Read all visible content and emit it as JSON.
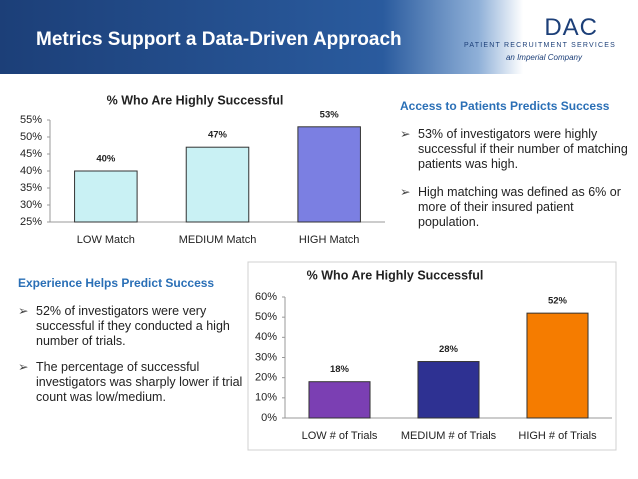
{
  "header": {
    "title": "Metrics Support a Data-Driven Approach",
    "logo": "DAC",
    "logo_subtitle": "PATIENT RECRUITMENT SERVICES",
    "logo_tagline": "an Imperial Company"
  },
  "right_section": {
    "heading": "Access to Patients Predicts Success",
    "bullets": [
      "53% of investigators were highly successful if their number of matching patients was high.",
      "High matching was defined as 6% or more of their insured patient population."
    ]
  },
  "left_section": {
    "heading": "Experience Helps Predict Success",
    "bullets": [
      "52% of investigators were very successful if they conducted a high number of trials.",
      "The percentage of successful investigators was sharply lower if trial count was low/medium."
    ]
  },
  "chart_data": [
    {
      "type": "bar",
      "title": "% Who Are Highly Successful",
      "categories": [
        "LOW Match",
        "MEDIUM Match",
        "HIGH Match"
      ],
      "values": [
        40,
        47,
        53
      ],
      "value_labels": [
        "40%",
        "47%",
        "53%"
      ],
      "colors": [
        "#c9f1f4",
        "#c9f1f4",
        "#7b7fe2"
      ],
      "ylim": [
        25,
        55
      ],
      "yticks": [
        {
          "value": 25,
          "label": "25%"
        },
        {
          "value": 30,
          "label": "30%"
        },
        {
          "value": 35,
          "label": "35%"
        },
        {
          "value": 40,
          "label": "40%"
        },
        {
          "value": 45,
          "label": "45%"
        },
        {
          "value": 50,
          "label": "50%"
        },
        {
          "value": 55,
          "label": "55%"
        }
      ]
    },
    {
      "type": "bar",
      "title": "% Who Are Highly Successful",
      "categories": [
        "LOW # of Trials",
        "MEDIUM # of Trials",
        "HIGH # of Trials"
      ],
      "values": [
        18,
        28,
        52
      ],
      "value_labels": [
        "18%",
        "28%",
        "52%"
      ],
      "colors": [
        "#7b3fb3",
        "#2e3192",
        "#f57c00"
      ],
      "ylim": [
        0,
        60
      ],
      "yticks": [
        {
          "value": 0,
          "label": "0%"
        },
        {
          "value": 10,
          "label": "10%"
        },
        {
          "value": 20,
          "label": "20%"
        },
        {
          "value": 30,
          "label": "30%"
        },
        {
          "value": 40,
          "label": "40%"
        },
        {
          "value": 50,
          "label": "50%"
        },
        {
          "value": 60,
          "label": "60%"
        }
      ]
    }
  ]
}
